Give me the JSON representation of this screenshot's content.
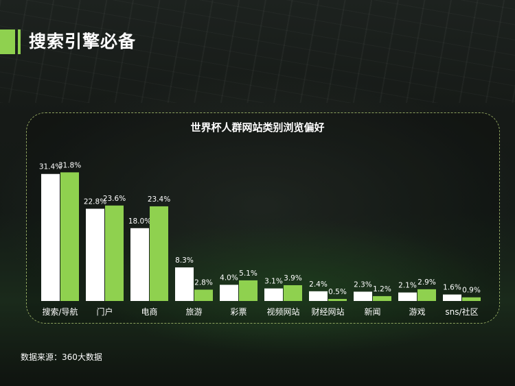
{
  "header": {
    "title": "搜索引擎必备"
  },
  "source": {
    "text": "数据来源：360大数据"
  },
  "colors": {
    "accent": "#8fd14f",
    "series_a": "#ffffff",
    "series_b": "#8fd14f"
  },
  "chart_data": {
    "type": "bar",
    "title": "世界杯人群网站类别浏览偏好",
    "xlabel": "",
    "ylabel": "",
    "ylim": [
      0,
      35
    ],
    "grid": false,
    "legend": "none",
    "categories": [
      "搜索/导航",
      "门户",
      "电商",
      "旅游",
      "彩票",
      "视频网站",
      "财经网站",
      "新闻",
      "游戏",
      "sns/社区"
    ],
    "series": [
      {
        "values": [
          31.4,
          22.8,
          18.0,
          8.3,
          4.0,
          3.1,
          2.4,
          2.3,
          2.1,
          1.6
        ],
        "labels": [
          "31.4%",
          "22.8%",
          "18.0%",
          "8.3%",
          "4.0%",
          "3.1%",
          "2.4%",
          "2.3%",
          "2.1%",
          "1.6%"
        ]
      },
      {
        "values": [
          31.8,
          23.6,
          23.4,
          2.8,
          5.1,
          3.9,
          0.5,
          1.2,
          2.9,
          0.9
        ],
        "labels": [
          "31.8%",
          "23.6%",
          "23.4%",
          "2.8%",
          "5.1%",
          "3.9%",
          "0.5%",
          "1.2%",
          "2.9%",
          "0.9%"
        ]
      }
    ]
  }
}
